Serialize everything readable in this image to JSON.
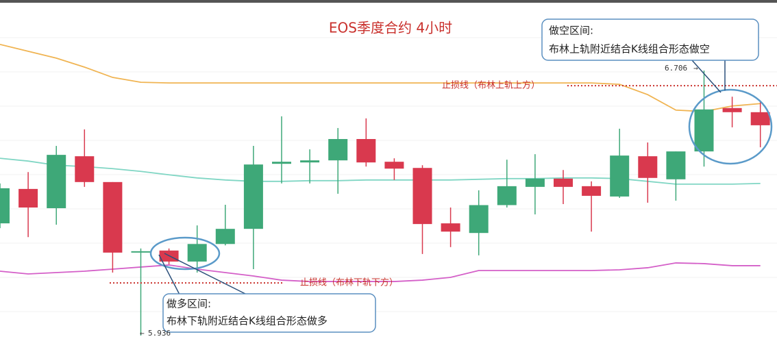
{
  "chart_data": {
    "type": "candlestick",
    "title": "EOS季度合约  4小时",
    "ylim": [
      5.92,
      6.905
    ],
    "up_color": "#3ea878",
    "down_color": "#d9394e",
    "open": [
      6.262,
      6.362,
      6.306,
      6.457,
      6.382,
      6.177,
      6.183,
      6.151,
      6.202,
      6.246,
      6.435,
      6.439,
      6.445,
      6.507,
      6.441,
      6.423,
      6.262,
      6.234,
      6.315,
      6.368,
      6.392,
      6.37,
      6.34,
      6.457,
      6.39,
      6.471,
      6.597,
      6.585
    ],
    "high": [
      6.378,
      6.411,
      6.487,
      6.535,
      6.382,
      6.189,
      6.189,
      6.256,
      6.316,
      6.487,
      6.573,
      6.477,
      6.539,
      6.567,
      6.451,
      6.431,
      6.308,
      6.358,
      6.447,
      6.463,
      6.417,
      6.384,
      6.537,
      6.497,
      6.471,
      6.706,
      6.63,
      6.616
    ],
    "low": [
      6.248,
      6.222,
      6.258,
      6.368,
      6.119,
      5.936,
      6.143,
      6.119,
      6.198,
      6.129,
      6.378,
      6.378,
      6.348,
      6.427,
      6.388,
      6.173,
      6.193,
      6.169,
      6.308,
      6.288,
      6.318,
      6.238,
      6.336,
      6.322,
      6.328,
      6.427,
      6.541,
      6.483
    ],
    "close": [
      6.364,
      6.308,
      6.461,
      6.382,
      6.177,
      6.181,
      6.151,
      6.202,
      6.246,
      6.433,
      6.441,
      6.445,
      6.507,
      6.439,
      6.421,
      6.26,
      6.238,
      6.315,
      6.37,
      6.392,
      6.368,
      6.342,
      6.459,
      6.394,
      6.471,
      6.593,
      6.585,
      6.547
    ],
    "series": [
      {
        "color": "#f0b452",
        "values": [
          6.782,
          6.762,
          6.742,
          6.716,
          6.686,
          6.672,
          6.67,
          6.67,
          6.67,
          6.67,
          6.67,
          6.67,
          6.67,
          6.67,
          6.67,
          6.67,
          6.67,
          6.67,
          6.67,
          6.67,
          6.67,
          6.67,
          6.666,
          6.636,
          6.591,
          6.587,
          6.603,
          6.61
        ]
      },
      {
        "color": "#80d6c4",
        "values": [
          6.451,
          6.443,
          6.431,
          6.427,
          6.421,
          6.413,
          6.403,
          6.394,
          6.388,
          6.384,
          6.384,
          6.386,
          6.386,
          6.388,
          6.388,
          6.388,
          6.388,
          6.39,
          6.392,
          6.392,
          6.394,
          6.394,
          6.392,
          6.384,
          6.376,
          6.376,
          6.376,
          6.378
        ]
      },
      {
        "color": "#d45fc8",
        "values": [
          6.123,
          6.115,
          6.119,
          6.123,
          6.129,
          6.135,
          6.141,
          6.129,
          6.119,
          6.109,
          6.097,
          6.093,
          6.093,
          6.093,
          6.093,
          6.097,
          6.105,
          6.125,
          6.125,
          6.125,
          6.125,
          6.125,
          6.127,
          6.133,
          6.147,
          6.145,
          6.139,
          6.139
        ]
      }
    ],
    "stop_lines": [
      {
        "label": "止损线（布林上轨上方）",
        "value": 6.662,
        "color": "#c9302c"
      },
      {
        "label": "止损线（布林下轨下方）",
        "value": 6.089,
        "color": "#c9302c"
      }
    ],
    "short_zone": {
      "title": "做空区间:",
      "text": "布林上轨附近结合K线组合形态做空"
    },
    "long_zone": {
      "title": "做多区间:",
      "text": "布林下轨附近结合K线组合形态做多"
    }
  }
}
